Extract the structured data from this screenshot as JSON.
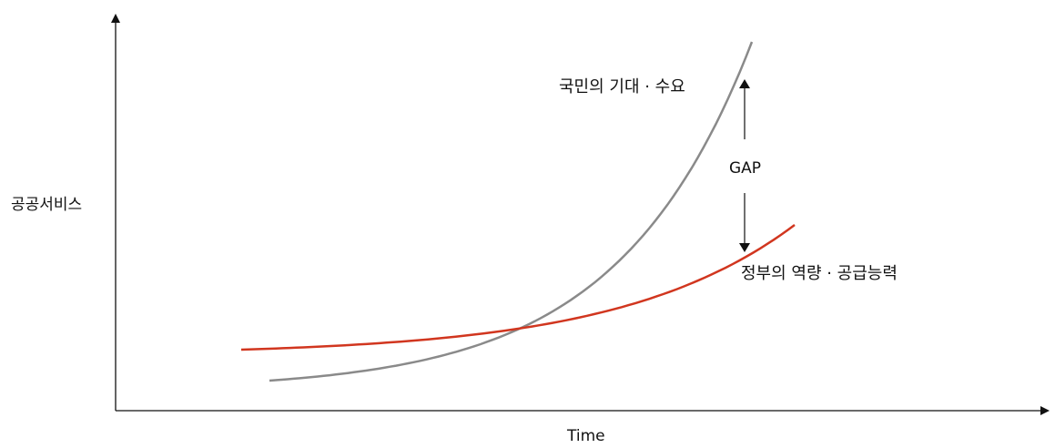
{
  "y_axis_label": "공공서비스",
  "x_axis_label": "Time",
  "gap_label": "GAP",
  "colors": {
    "axis": "#111111",
    "demand_curve": "#8a8a8a",
    "capacity_curve": "#d1361f"
  },
  "chart_data": {
    "type": "line",
    "xlabel": "Time",
    "ylabel": "공공서비스",
    "series": [
      {
        "name": "국민의 기대 · 수요",
        "color": "#8a8a8a",
        "shape": "steep-exponential"
      },
      {
        "name": "정부의 역량 · 공급능력",
        "color": "#d1361f",
        "shape": "gradual-exponential"
      }
    ],
    "annotations": [
      "GAP"
    ],
    "grid": false
  }
}
